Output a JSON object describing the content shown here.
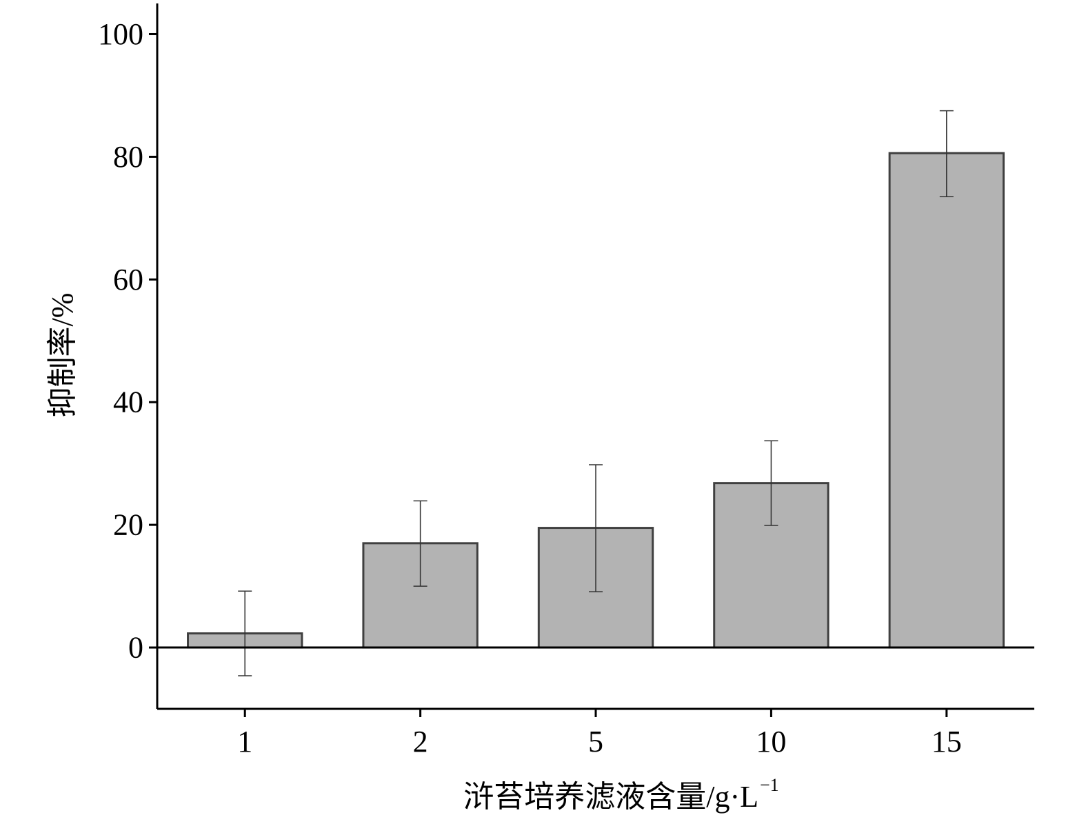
{
  "chart_data": {
    "type": "bar",
    "categories": [
      "1",
      "2",
      "5",
      "10",
      "15"
    ],
    "values": [
      2.3,
      17.0,
      19.5,
      26.8,
      80.6
    ],
    "error_lower": [
      -4.6,
      10.0,
      9.1,
      19.9,
      73.5
    ],
    "error_upper": [
      9.2,
      23.9,
      29.8,
      33.7,
      87.5
    ],
    "xlabel": "浒苔培养滤液含量/g·L",
    "xlabel_superscript": "−1",
    "ylabel": "抑制率/%",
    "ylim": [
      -10,
      105
    ],
    "yticks": [
      0,
      20,
      40,
      60,
      80,
      100
    ],
    "ytick_labels": [
      "0",
      "20",
      "40",
      "60",
      "80",
      "100"
    ],
    "grid": false,
    "legend": "none",
    "bar_color": "#b3b3b3",
    "bar_edge_color": "#404040",
    "axis_color": "#000000"
  }
}
